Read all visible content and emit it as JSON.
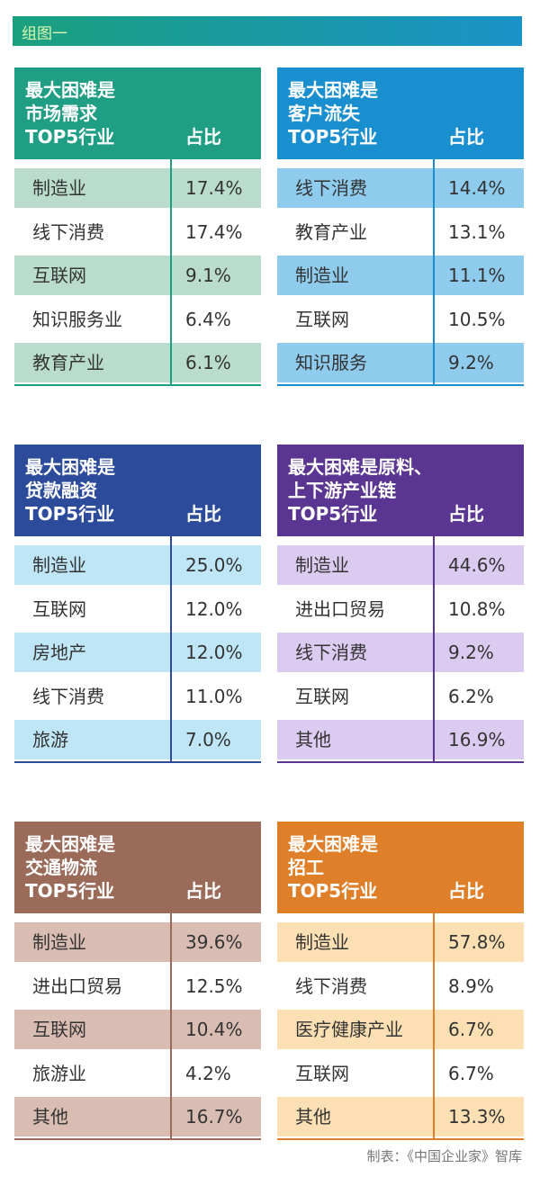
{
  "header": {
    "title": "组图一"
  },
  "tables": [
    {
      "title": [
        "最大困难是",
        "市场需求"
      ],
      "columns": [
        "TOP5行业",
        "占比"
      ],
      "rows": [
        [
          "制造业",
          "17.4%"
        ],
        [
          "线下消费",
          "17.4%"
        ],
        [
          "互联网",
          "9.1%"
        ],
        [
          "知识服务业",
          "6.4%"
        ],
        [
          "教育产业",
          "6.1%"
        ]
      ]
    },
    {
      "title": [
        "最大困难是",
        "客户流失"
      ],
      "columns": [
        "TOP5行业",
        "占比"
      ],
      "rows": [
        [
          "线下消费",
          "14.4%"
        ],
        [
          "教育产业",
          "13.1%"
        ],
        [
          "制造业",
          "11.1%"
        ],
        [
          "互联网",
          "10.5%"
        ],
        [
          "知识服务",
          "9.2%"
        ]
      ]
    },
    {
      "title": [
        "最大困难是",
        "贷款融资"
      ],
      "columns": [
        "TOP5行业",
        "占比"
      ],
      "rows": [
        [
          "制造业",
          "25.0%"
        ],
        [
          "互联网",
          "12.0%"
        ],
        [
          "房地产",
          "12.0%"
        ],
        [
          "线下消费",
          "11.0%"
        ],
        [
          "旅游",
          "7.0%"
        ]
      ]
    },
    {
      "title": [
        "最大困难是原料、",
        "上下游产业链"
      ],
      "columns": [
        "TOP5行业",
        "占比"
      ],
      "rows": [
        [
          "制造业",
          "44.6%"
        ],
        [
          "进出口贸易",
          "10.8%"
        ],
        [
          "线下消费",
          "9.2%"
        ],
        [
          "互联网",
          "6.2%"
        ],
        [
          "其他",
          "16.9%"
        ]
      ]
    },
    {
      "title": [
        "最大困难是",
        "交通物流"
      ],
      "columns": [
        "TOP5行业",
        "占比"
      ],
      "rows": [
        [
          "制造业",
          "39.6%"
        ],
        [
          "进出口贸易",
          "12.5%"
        ],
        [
          "互联网",
          "10.4%"
        ],
        [
          "旅游业",
          "4.2%"
        ],
        [
          "其他",
          "16.7%"
        ]
      ]
    },
    {
      "title": [
        "最大困难是",
        "招工"
      ],
      "columns": [
        "TOP5行业",
        "占比"
      ],
      "rows": [
        [
          "制造业",
          "57.8%"
        ],
        [
          "线下消费",
          "8.9%"
        ],
        [
          "医疗健康产业",
          "6.7%"
        ],
        [
          "互联网",
          "6.7%"
        ],
        [
          "其他",
          "13.3%"
        ]
      ]
    }
  ],
  "footer": "制表：《中国企业家》智库"
}
